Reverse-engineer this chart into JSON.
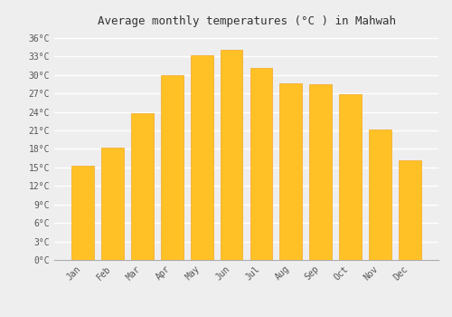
{
  "title": "Average monthly temperatures (°C ) in Mahwah",
  "months": [
    "Jan",
    "Feb",
    "Mar",
    "Apr",
    "May",
    "Jun",
    "Jul",
    "Aug",
    "Sep",
    "Oct",
    "Nov",
    "Dec"
  ],
  "values": [
    15.2,
    18.2,
    23.8,
    29.9,
    33.2,
    34.1,
    31.1,
    28.6,
    28.5,
    26.9,
    21.2,
    16.1
  ],
  "bar_color": "#FFC125",
  "bar_edge_color": "#F5A623",
  "ylim": [
    0,
    37
  ],
  "yticks": [
    0,
    3,
    6,
    9,
    12,
    15,
    18,
    21,
    24,
    27,
    30,
    33,
    36
  ],
  "ytick_labels": [
    "0°C",
    "3°C",
    "6°C",
    "9°C",
    "12°C",
    "15°C",
    "18°C",
    "21°C",
    "24°C",
    "27°C",
    "30°C",
    "33°C",
    "36°C"
  ],
  "bg_color": "#eeeeee",
  "plot_bg_color": "#eeeeee",
  "grid_color": "#ffffff",
  "title_fontsize": 9,
  "tick_fontsize": 7,
  "bar_width": 0.75
}
